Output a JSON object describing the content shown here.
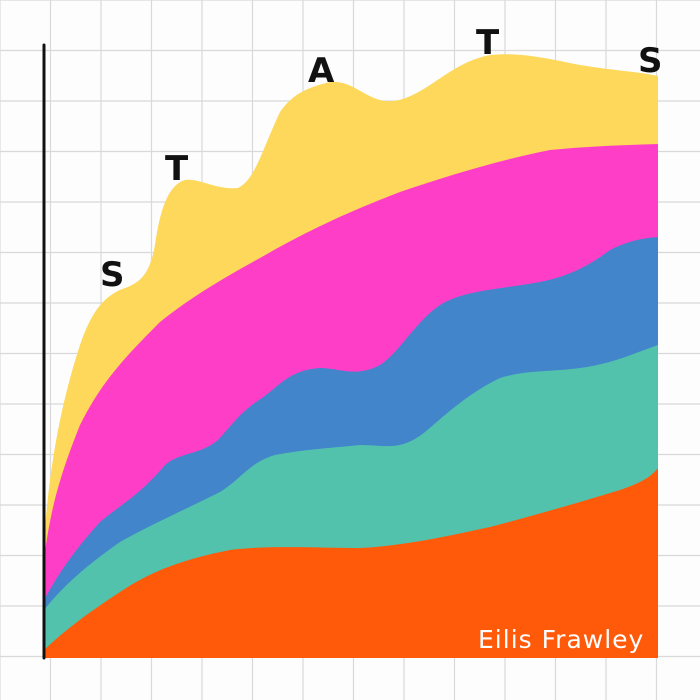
{
  "title_letters": [
    "S",
    "T",
    "A",
    "T",
    "S"
  ],
  "signature": "Eilis Frawley",
  "colors": {
    "background": "#fdfdfd",
    "grid": "#d9d9d9",
    "axis": "#111111",
    "yellow": "#FDD85A",
    "pink": "#FF3EC8",
    "blue": "#4285CA",
    "teal": "#52C2AC",
    "orange": "#FF5A0A",
    "signature": "#ffffff"
  }
}
